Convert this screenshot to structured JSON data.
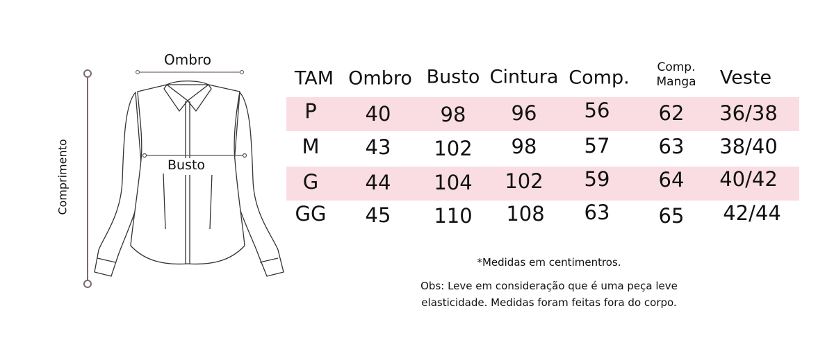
{
  "diagram": {
    "shoulder_label": "Ombro",
    "bust_label": "Busto",
    "length_label": "Comprimento"
  },
  "table": {
    "headers": [
      "TAM",
      "Ombro",
      "Busto",
      "Cintura",
      "Comp.",
      "Comp. Manga",
      "Veste"
    ],
    "header_manga": [
      "Comp.",
      "Manga"
    ],
    "rows": [
      [
        "P",
        "40",
        "98",
        "96",
        "56",
        "62",
        "36/38"
      ],
      [
        "M",
        "43",
        "102",
        "98",
        "57",
        "63",
        "38/40"
      ],
      [
        "G",
        "44",
        "104",
        "102",
        "59",
        "64",
        "40/42"
      ],
      [
        "GG",
        "45",
        "110",
        "108",
        "63",
        "65",
        "42/44"
      ]
    ],
    "highlight_color": "#fadde3",
    "line_color": "#7a6a6e"
  },
  "notes": {
    "units": "*Medidas em centimentros.",
    "obs_line1": "Obs: Leve em consideração que é uma peça leve",
    "obs_line2": "elasticidade. Medidas foram feitas fora do corpo."
  }
}
